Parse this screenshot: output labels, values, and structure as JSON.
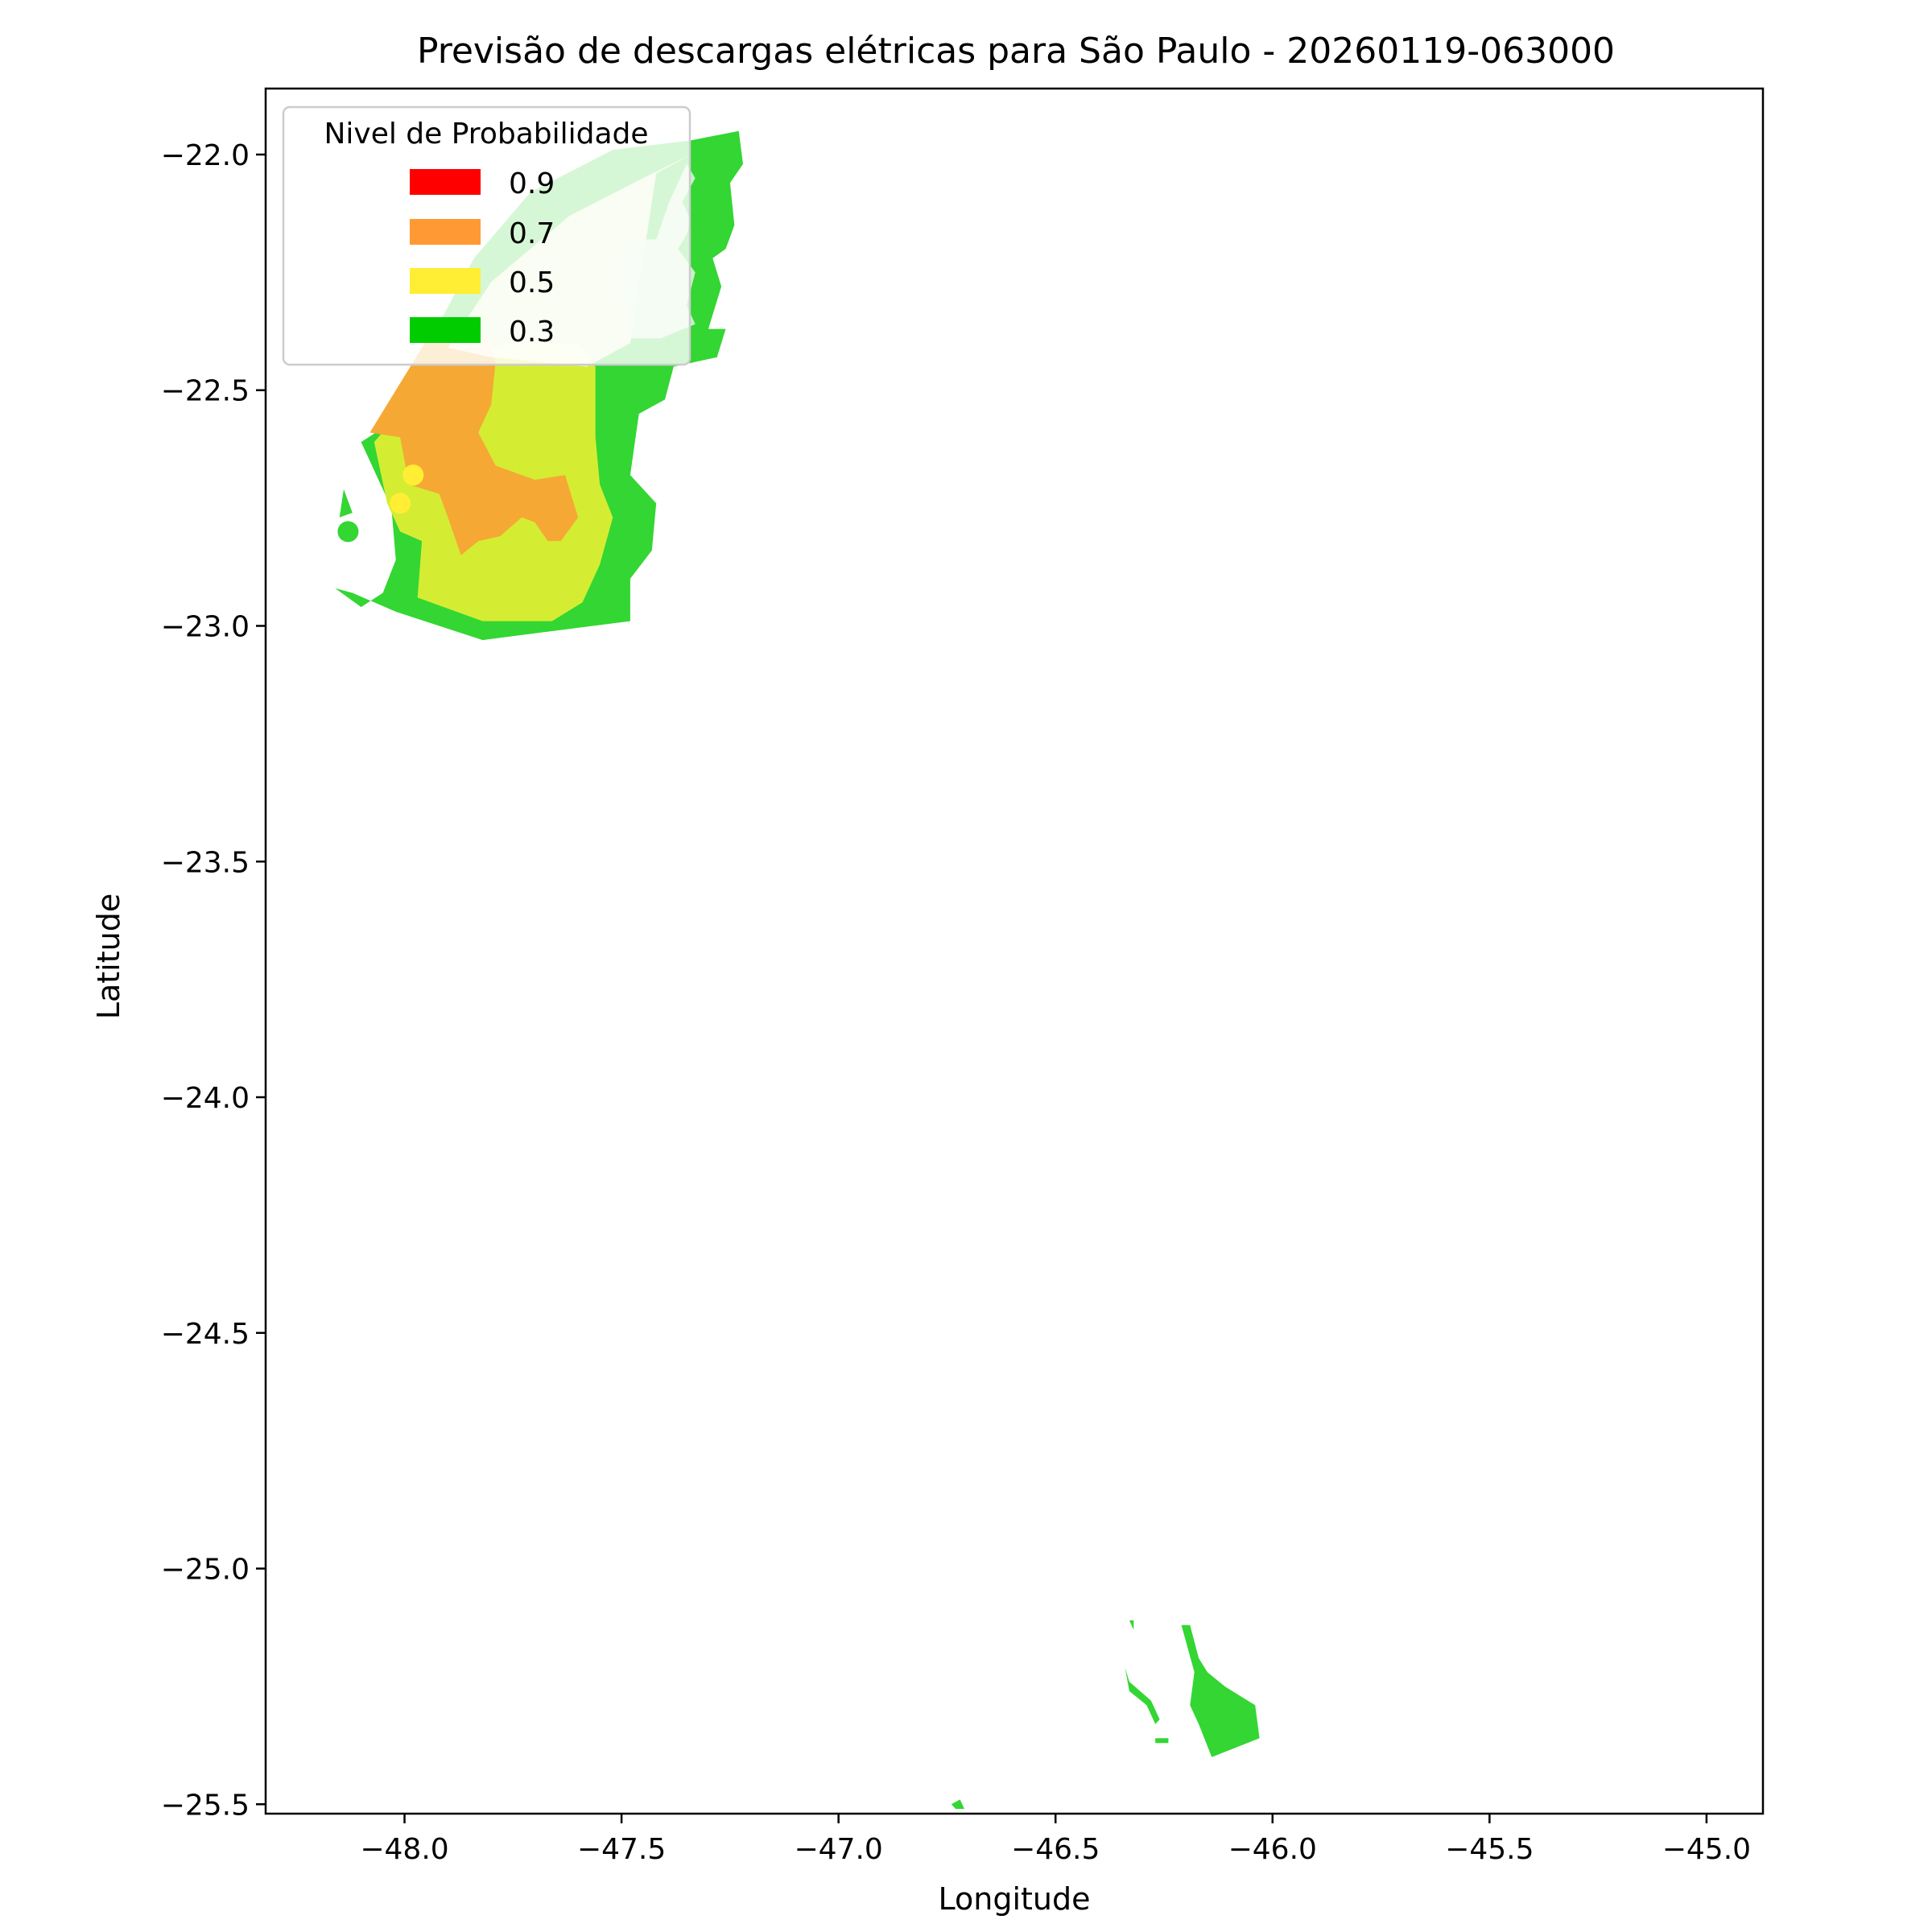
{
  "chart_data": {
    "type": "contour-map",
    "title": "Previsão de descargas elétricas para São Paulo - 20260119-063000",
    "xlabel": "Longitude",
    "ylabel": "Latitude",
    "xlim": [
      -48.32,
      -44.87
    ],
    "ylim": [
      -25.52,
      -21.86
    ],
    "xticks": [
      -48.0,
      -47.5,
      -47.0,
      -46.5,
      -46.0,
      -45.5,
      -45.0
    ],
    "xtick_labels": [
      "−48.0",
      "−47.5",
      "−47.0",
      "−46.5",
      "−46.0",
      "−45.5",
      "−45.0"
    ],
    "yticks": [
      -22.0,
      -22.5,
      -23.0,
      -23.5,
      -24.0,
      -24.5,
      -25.0,
      -25.5
    ],
    "ytick_labels": [
      "−22.0",
      "−22.5",
      "−23.0",
      "−23.5",
      "−24.0",
      "−24.5",
      "−25.0",
      "−25.5"
    ],
    "legend": {
      "title": "Nivel de Probabilidade",
      "location": "upper-left",
      "entries": [
        {
          "label": "0.9",
          "color": "#ff0000"
        },
        {
          "label": "0.7",
          "color": "#ff9933"
        },
        {
          "label": "0.5",
          "color": "#ffee33"
        },
        {
          "label": "0.3",
          "color": "#00cc00"
        }
      ]
    },
    "regions": [
      {
        "level": 0.3,
        "color": "#33d633",
        "points": [
          [
            -47.34,
            -21.97
          ],
          [
            -47.23,
            -21.95
          ],
          [
            -47.22,
            -22.02
          ],
          [
            -47.25,
            -22.06
          ],
          [
            -47.24,
            -22.15
          ],
          [
            -47.26,
            -22.2
          ],
          [
            -47.29,
            -22.22
          ],
          [
            -47.27,
            -22.28
          ],
          [
            -47.3,
            -22.37
          ],
          [
            -47.26,
            -22.37
          ],
          [
            -47.28,
            -22.43
          ],
          [
            -47.38,
            -22.45
          ],
          [
            -47.4,
            -22.52
          ],
          [
            -47.46,
            -22.55
          ],
          [
            -47.48,
            -22.68
          ],
          [
            -47.42,
            -22.74
          ],
          [
            -47.43,
            -22.84
          ],
          [
            -47.48,
            -22.9
          ],
          [
            -47.48,
            -22.99
          ],
          [
            -47.82,
            -23.03
          ],
          [
            -48.02,
            -22.97
          ],
          [
            -48.12,
            -22.93
          ],
          [
            -48.16,
            -22.92
          ],
          [
            -48.1,
            -22.96
          ],
          [
            -48.05,
            -22.93
          ],
          [
            -48.02,
            -22.86
          ],
          [
            -48.03,
            -22.75
          ],
          [
            -48.07,
            -22.67
          ],
          [
            -48.1,
            -22.61
          ],
          [
            -48.05,
            -22.58
          ],
          [
            -47.84,
            -22.22
          ],
          [
            -47.71,
            -22.08
          ],
          [
            -47.52,
            -21.99
          ]
        ]
      },
      {
        "level": 0.5,
        "color": "#d4ed33",
        "points": [
          [
            -48.07,
            -22.61
          ],
          [
            -48.04,
            -22.74
          ],
          [
            -48.01,
            -22.8
          ],
          [
            -47.96,
            -22.82
          ],
          [
            -47.97,
            -22.94
          ],
          [
            -47.82,
            -22.99
          ],
          [
            -47.66,
            -22.99
          ],
          [
            -47.59,
            -22.95
          ],
          [
            -47.55,
            -22.87
          ],
          [
            -47.52,
            -22.77
          ],
          [
            -47.55,
            -22.7
          ],
          [
            -47.56,
            -22.6
          ],
          [
            -47.56,
            -22.45
          ],
          [
            -47.6,
            -22.4
          ],
          [
            -47.76,
            -22.4
          ],
          [
            -47.92,
            -22.45
          ]
        ]
      },
      {
        "level": 0.7,
        "color": "#f6a834",
        "points": [
          [
            -48.08,
            -22.59
          ],
          [
            -48.01,
            -22.6
          ],
          [
            -47.99,
            -22.7
          ],
          [
            -47.92,
            -22.72
          ],
          [
            -47.9,
            -22.77
          ],
          [
            -47.87,
            -22.85
          ],
          [
            -47.83,
            -22.82
          ],
          [
            -47.78,
            -22.81
          ],
          [
            -47.73,
            -22.77
          ],
          [
            -47.7,
            -22.78
          ],
          [
            -47.67,
            -22.82
          ],
          [
            -47.64,
            -22.82
          ],
          [
            -47.6,
            -22.77
          ],
          [
            -47.63,
            -22.68
          ],
          [
            -47.7,
            -22.69
          ],
          [
            -47.79,
            -22.66
          ],
          [
            -47.83,
            -22.59
          ],
          [
            -47.8,
            -22.53
          ],
          [
            -47.79,
            -22.44
          ],
          [
            -47.8,
            -22.39
          ],
          [
            -47.86,
            -22.36
          ],
          [
            -47.94,
            -22.38
          ]
        ]
      },
      {
        "level": 0.5,
        "color": "#f8f8d8",
        "opacity": 0.9,
        "points": [
          [
            -47.9,
            -22.41
          ],
          [
            -47.8,
            -22.27
          ],
          [
            -47.62,
            -22.13
          ],
          [
            -47.45,
            -22.05
          ],
          [
            -47.34,
            -22.0
          ],
          [
            -47.42,
            -22.04
          ],
          [
            -47.48,
            -22.4
          ],
          [
            -47.58,
            -22.45
          ],
          [
            -47.8,
            -22.43
          ]
        ]
      },
      {
        "level": 0.3,
        "color": "#d8f4d8",
        "opacity": 0.9,
        "points": [
          [
            -47.35,
            -22.02
          ],
          [
            -47.33,
            -22.05
          ],
          [
            -47.36,
            -22.1
          ],
          [
            -47.34,
            -22.14
          ],
          [
            -47.35,
            -22.17
          ],
          [
            -47.37,
            -22.2
          ],
          [
            -47.33,
            -22.25
          ],
          [
            -47.35,
            -22.32
          ],
          [
            -47.33,
            -22.36
          ],
          [
            -47.41,
            -22.39
          ],
          [
            -47.48,
            -22.39
          ],
          [
            -47.49,
            -22.34
          ],
          [
            -47.5,
            -22.28
          ],
          [
            -47.5,
            -22.22
          ],
          [
            -47.48,
            -22.18
          ],
          [
            -47.42,
            -22.18
          ],
          [
            -47.39,
            -22.1
          ]
        ]
      },
      {
        "level": 0.3,
        "color": "#33d633",
        "points": [
          [
            -48.14,
            -22.71
          ],
          [
            -48.12,
            -22.76
          ],
          [
            -48.15,
            -22.77
          ]
        ]
      },
      {
        "level": 0.3,
        "color": "#33d633",
        "points": [
          [
            -46.34,
            -25.21
          ],
          [
            -46.33,
            -25.26
          ],
          [
            -46.29,
            -25.29
          ],
          [
            -46.27,
            -25.33
          ],
          [
            -46.26,
            -25.32
          ],
          [
            -46.28,
            -25.28
          ],
          [
            -46.33,
            -25.24
          ]
        ]
      },
      {
        "level": 0.3,
        "color": "#33d633",
        "points": [
          [
            -46.21,
            -25.12
          ],
          [
            -46.19,
            -25.12
          ],
          [
            -46.17,
            -25.19
          ],
          [
            -46.15,
            -25.22
          ],
          [
            -46.11,
            -25.25
          ],
          [
            -46.04,
            -25.29
          ],
          [
            -46.03,
            -25.36
          ],
          [
            -46.14,
            -25.4
          ],
          [
            -46.17,
            -25.33
          ],
          [
            -46.19,
            -25.29
          ],
          [
            -46.18,
            -25.22
          ]
        ]
      },
      {
        "level": 0.3,
        "color": "#33d633",
        "points": [
          [
            -46.33,
            -25.11
          ],
          [
            -46.32,
            -25.11
          ],
          [
            -46.32,
            -25.13
          ]
        ]
      },
      {
        "level": 0.3,
        "color": "#33d633",
        "points": [
          [
            -46.27,
            -25.36
          ],
          [
            -46.24,
            -25.36
          ],
          [
            -46.24,
            -25.37
          ],
          [
            -46.27,
            -25.37
          ]
        ]
      },
      {
        "level": 0.3,
        "color": "#33d633",
        "points": [
          [
            -46.74,
            -25.5
          ],
          [
            -46.72,
            -25.49
          ],
          [
            -46.71,
            -25.51
          ],
          [
            -46.73,
            -25.51
          ]
        ]
      }
    ],
    "markers": [
      {
        "lon": -47.98,
        "lat": -22.68,
        "color": "#ffee33",
        "level": 0.5
      },
      {
        "lon": -48.01,
        "lat": -22.74,
        "color": "#ffee33",
        "level": 0.5
      },
      {
        "lon": -48.13,
        "lat": -22.8,
        "color": "#33d633",
        "level": 0.3
      }
    ]
  }
}
